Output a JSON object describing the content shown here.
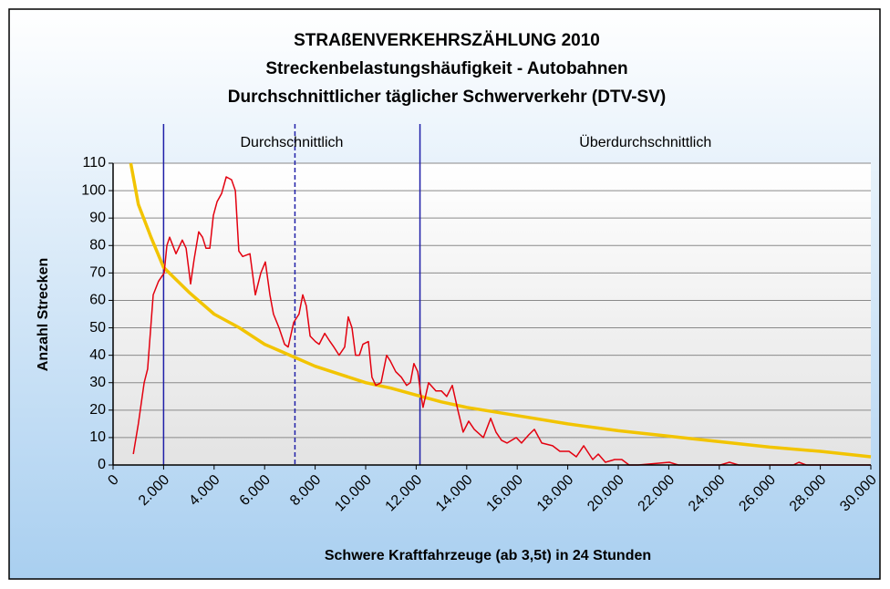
{
  "chart_data": {
    "type": "line",
    "title": "STRAßENVERKEHRSZÄHLUNG 2010",
    "subtitle": "Streckenbelastungshäufigkeit - Autobahnen",
    "description": "Durchschnittlicher täglicher Schwerverkehr (DTV-SV)",
    "description_color": "#e3000f",
    "x_label": "Schwere Kraftfahrzeuge (ab 3,5t) in 24 Stunden",
    "y_label": "Anzahl Strecken",
    "xlim": [
      0,
      30000
    ],
    "ylim": [
      0,
      110
    ],
    "yticks": [
      0,
      10,
      20,
      30,
      40,
      50,
      60,
      70,
      80,
      90,
      100,
      110
    ],
    "xticks": [
      0,
      {
        "value": 2000,
        "label": "2.000"
      },
      {
        "value": 4000,
        "label": "4.000"
      },
      {
        "value": 6000,
        "label": "6.000"
      },
      {
        "value": 8000,
        "label": "8.000"
      },
      {
        "value": 10000,
        "label": "10.000"
      },
      {
        "value": 12000,
        "label": "12.000"
      },
      {
        "value": 14000,
        "label": "14.000"
      },
      {
        "value": 16000,
        "label": "16.000"
      },
      {
        "value": 18000,
        "label": "18.000"
      },
      {
        "value": 20000,
        "label": "20.000"
      },
      {
        "value": 22000,
        "label": "22.000"
      },
      {
        "value": 24000,
        "label": "24.000"
      },
      {
        "value": 26000,
        "label": "26.000"
      },
      {
        "value": 28000,
        "label": "28.000"
      },
      {
        "value": 30000,
        "label": "30.000"
      }
    ],
    "grid": true,
    "reference_lines": [
      {
        "x": 2000,
        "style": "solid",
        "color": "#1f1fa8"
      },
      {
        "x": 7200,
        "style": "dashed",
        "color": "#1f1fa8"
      },
      {
        "x": 12150,
        "style": "solid",
        "color": "#1f1fa8"
      }
    ],
    "regions": [
      {
        "label": "Durchschnittlich",
        "from": 2000,
        "to": 12150
      },
      {
        "label": "Überdurchschnittlich",
        "from": 12150,
        "to": 30000
      }
    ],
    "series": [
      {
        "color": "#e3000f",
        "width": 1.5,
        "x": [
          800,
          1000,
          1230,
          1370,
          1590,
          1800,
          2020,
          2130,
          2240,
          2490,
          2740,
          2890,
          3070,
          3210,
          3390,
          3540,
          3680,
          3830,
          3970,
          4120,
          4300,
          4480,
          4690,
          4840,
          4980,
          5130,
          5420,
          5630,
          5850,
          6030,
          6210,
          6350,
          6570,
          6790,
          6930,
          7150,
          7360,
          7510,
          7650,
          7800,
          8010,
          8160,
          8380,
          8590,
          8740,
          8950,
          9170,
          9310,
          9460,
          9600,
          9750,
          9890,
          10110,
          10250,
          10400,
          10610,
          10830,
          10970,
          11190,
          11410,
          11620,
          11770,
          11910,
          12060,
          12200,
          12270,
          12490,
          12780,
          13000,
          13210,
          13430,
          13650,
          13860,
          14080,
          14300,
          14660,
          14950,
          15160,
          15380,
          15600,
          15960,
          16170,
          16460,
          16680,
          16970,
          17400,
          17690,
          18050,
          18340,
          18630,
          18990,
          19210,
          19490,
          19860,
          20140,
          20430,
          20790,
          22020,
          22380,
          24040,
          24400,
          24770,
          26930,
          27150,
          27440,
          30000
        ],
        "values": [
          4,
          15,
          30,
          35,
          62,
          67,
          70,
          80,
          83,
          77,
          82,
          79,
          66,
          75,
          85,
          83,
          79,
          79,
          91,
          96,
          99,
          105,
          104,
          100,
          78,
          76,
          77,
          62,
          70,
          74,
          62,
          55,
          50,
          44,
          43,
          52,
          55,
          62,
          58,
          47,
          45,
          44,
          48,
          45,
          43,
          40,
          43,
          54,
          50,
          40,
          40,
          44,
          45,
          32,
          29,
          30,
          40,
          38,
          34,
          32,
          29,
          30,
          37,
          34,
          25,
          21,
          30,
          27,
          27,
          25,
          29,
          20,
          12,
          16,
          13,
          10,
          17,
          12,
          9,
          8,
          10,
          8,
          11,
          13,
          8,
          7,
          5,
          5,
          3,
          7,
          2,
          4,
          1,
          2,
          2,
          0,
          0,
          1,
          0,
          0,
          1,
          0,
          0,
          1,
          0,
          0
        ]
      },
      {
        "color": "#f2c400",
        "width": 3.5,
        "x": [
          700,
          1000,
          1500,
          2000,
          3000,
          4000,
          5000,
          6000,
          7000,
          8000,
          9000,
          10000,
          11000,
          12000,
          13000,
          14000,
          15000,
          16000,
          18000,
          20000,
          22000,
          24000,
          26000,
          28000,
          30000
        ],
        "values": [
          110,
          95,
          83,
          72,
          63,
          55,
          50,
          44,
          40,
          36,
          33,
          30,
          28,
          25.5,
          23,
          21,
          19.5,
          18,
          15,
          12.5,
          10.5,
          8.5,
          6.5,
          5,
          3
        ]
      }
    ]
  }
}
